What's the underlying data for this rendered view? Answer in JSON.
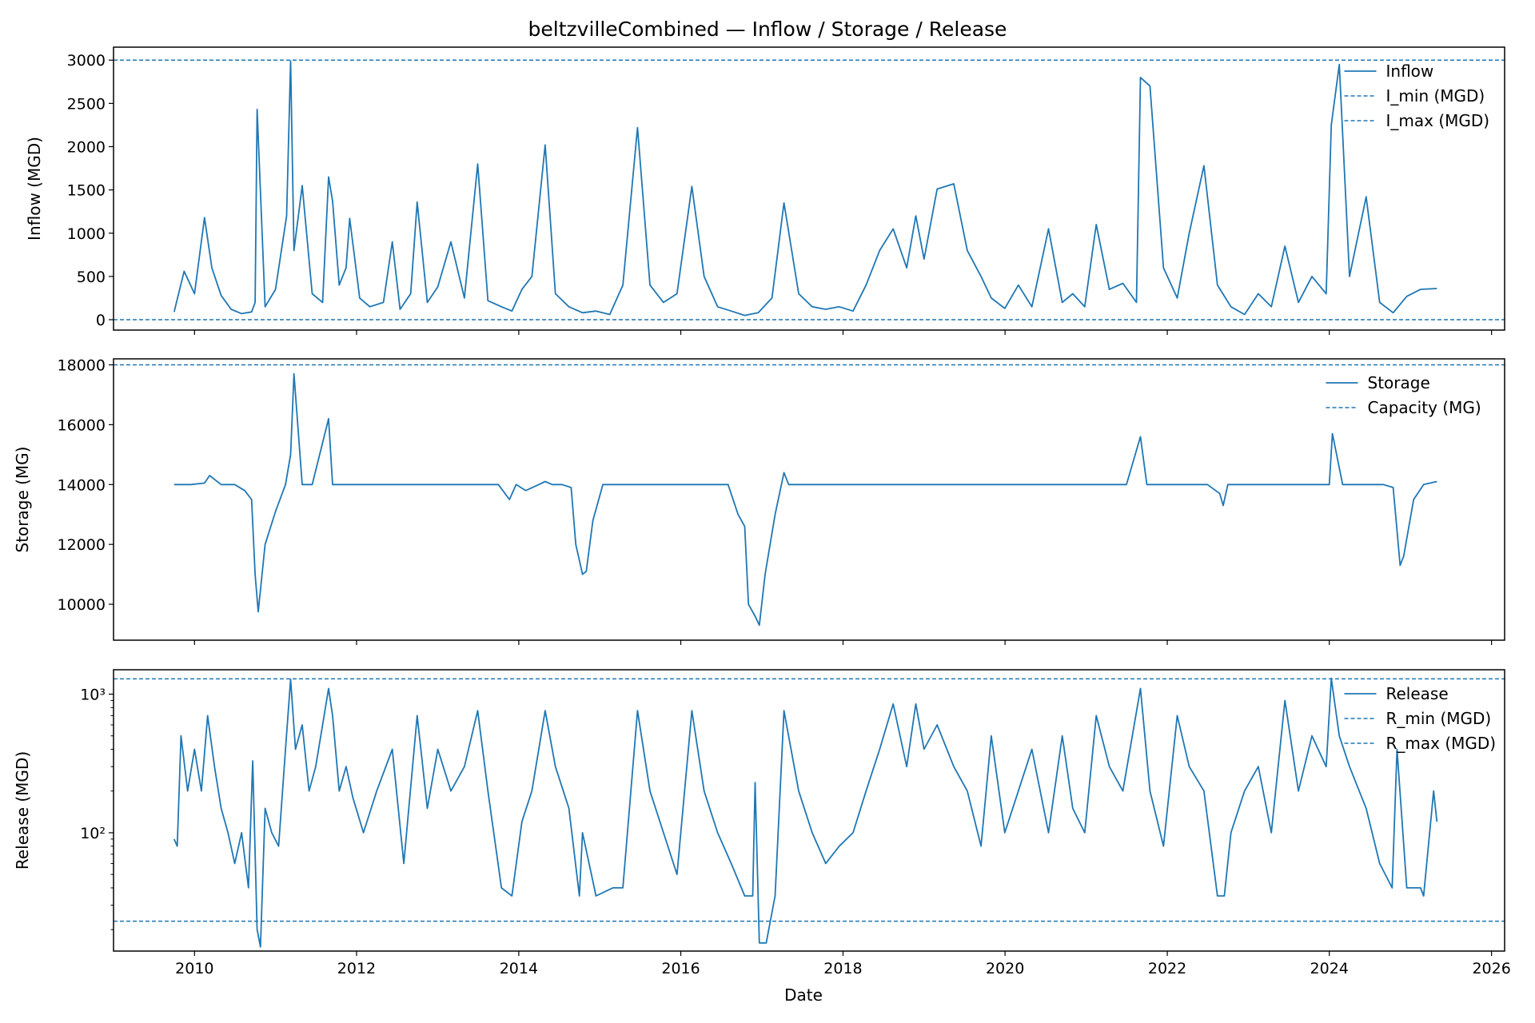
{
  "figure": {
    "title": "beltzvilleCombined — Inflow / Storage / Release",
    "xlabel": "Date",
    "line_color": "#1f77b4"
  },
  "chart_data": [
    {
      "type": "line",
      "name": "inflow",
      "ylabel": "Inflow (MGD)",
      "yscale": "linear",
      "xlim": [
        "2009-01-01",
        "2026-03-01"
      ],
      "ylim": [
        -120,
        3150
      ],
      "yticks": [
        0,
        500,
        1000,
        1500,
        2000,
        2500,
        3000
      ],
      "ytick_labels": [
        "0",
        "500",
        "1000",
        "1500",
        "2000",
        "2500",
        "3000"
      ],
      "xticks": [
        "2010",
        "2012",
        "2014",
        "2016",
        "2018",
        "2020",
        "2022",
        "2024",
        "2026"
      ],
      "show_xtick_labels": false,
      "grid": false,
      "legend_position": "top-right",
      "legend": [
        "Inflow",
        "I_min (MGD)",
        "I_max (MGD)"
      ],
      "hlines": [
        {
          "label": "I_min (MGD)",
          "value": 0
        },
        {
          "label": "I_max (MGD)",
          "value": 3000
        }
      ],
      "series": [
        {
          "name": "Inflow",
          "x": [
            "2009-10-01",
            "2009-11-15",
            "2010-01-01",
            "2010-02-15",
            "2010-03-20",
            "2010-05-01",
            "2010-06-15",
            "2010-08-01",
            "2010-09-15",
            "2010-10-01",
            "2010-10-10",
            "2010-11-15",
            "2011-01-01",
            "2011-02-20",
            "2011-03-10",
            "2011-03-25",
            "2011-05-01",
            "2011-06-15",
            "2011-08-01",
            "2011-08-28",
            "2011-09-15",
            "2011-10-15",
            "2011-11-15",
            "2011-12-01",
            "2012-01-15",
            "2012-03-01",
            "2012-05-01",
            "2012-06-10",
            "2012-07-15",
            "2012-09-01",
            "2012-09-30",
            "2012-11-15",
            "2013-01-01",
            "2013-03-01",
            "2013-05-01",
            "2013-06-30",
            "2013-08-15",
            "2013-10-15",
            "2013-12-01",
            "2014-01-15",
            "2014-03-01",
            "2014-04-30",
            "2014-06-15",
            "2014-08-15",
            "2014-10-15",
            "2014-12-15",
            "2015-02-15",
            "2015-04-15",
            "2015-06-20",
            "2015-08-15",
            "2015-10-15",
            "2015-12-15",
            "2016-02-20",
            "2016-04-15",
            "2016-06-15",
            "2016-08-15",
            "2016-10-15",
            "2016-12-15",
            "2017-02-15",
            "2017-04-10",
            "2017-06-15",
            "2017-08-15",
            "2017-10-15",
            "2017-12-15",
            "2018-02-15",
            "2018-04-15",
            "2018-06-15",
            "2018-08-15",
            "2018-10-15",
            "2018-11-25",
            "2019-01-01",
            "2019-03-01",
            "2019-05-15",
            "2019-07-15",
            "2019-09-15",
            "2019-10-31",
            "2019-12-31",
            "2020-03-01",
            "2020-05-01",
            "2020-07-15",
            "2020-09-15",
            "2020-11-01",
            "2020-12-25",
            "2021-02-15",
            "2021-04-15",
            "2021-06-15",
            "2021-08-15",
            "2021-09-02",
            "2021-10-15",
            "2021-12-15",
            "2022-02-15",
            "2022-04-10",
            "2022-06-15",
            "2022-08-15",
            "2022-10-15",
            "2022-12-15",
            "2023-02-15",
            "2023-04-15",
            "2023-06-15",
            "2023-08-15",
            "2023-10-15",
            "2023-12-18",
            "2024-01-10",
            "2024-02-15",
            "2024-04-01",
            "2024-06-15",
            "2024-08-15",
            "2024-10-15",
            "2024-12-15",
            "2025-02-15",
            "2025-04-30"
          ],
          "y": [
            90,
            560,
            300,
            1180,
            600,
            280,
            120,
            70,
            90,
            200,
            2430,
            150,
            350,
            1200,
            2990,
            800,
            1550,
            300,
            200,
            1650,
            1370,
            400,
            600,
            1170,
            250,
            150,
            200,
            900,
            120,
            300,
            1360,
            200,
            380,
            900,
            250,
            1800,
            220,
            150,
            100,
            350,
            500,
            2020,
            300,
            150,
            80,
            100,
            60,
            400,
            2220,
            400,
            200,
            300,
            1540,
            500,
            150,
            100,
            50,
            80,
            250,
            1350,
            300,
            150,
            120,
            150,
            100,
            400,
            800,
            1050,
            600,
            1200,
            700,
            1510,
            1570,
            800,
            500,
            250,
            130,
            400,
            150,
            1050,
            200,
            300,
            150,
            1100,
            350,
            420,
            200,
            2800,
            2700,
            600,
            250,
            1000,
            1780,
            400,
            150,
            60,
            300,
            150,
            850,
            200,
            500,
            300,
            2250,
            2950,
            500,
            1420,
            200,
            80,
            270,
            350,
            360
          ]
        }
      ]
    },
    {
      "type": "line",
      "name": "storage",
      "ylabel": "Storage (MG)",
      "yscale": "linear",
      "xlim": [
        "2009-01-01",
        "2026-03-01"
      ],
      "ylim": [
        8800,
        18200
      ],
      "yticks": [
        10000,
        12000,
        14000,
        16000,
        18000
      ],
      "ytick_labels": [
        "10000",
        "12000",
        "14000",
        "16000",
        "18000"
      ],
      "xticks": [
        "2010",
        "2012",
        "2014",
        "2016",
        "2018",
        "2020",
        "2022",
        "2024",
        "2026"
      ],
      "show_xtick_labels": false,
      "grid": false,
      "legend_position": "top-right",
      "legend": [
        "Storage",
        "Capacity (MG)"
      ],
      "hlines": [
        {
          "label": "Capacity (MG)",
          "value": 18000
        }
      ],
      "series": [
        {
          "name": "Storage",
          "x": [
            "2009-10-01",
            "2009-12-15",
            "2010-02-15",
            "2010-03-10",
            "2010-05-01",
            "2010-07-01",
            "2010-08-15",
            "2010-09-15",
            "2010-10-01",
            "2010-10-15",
            "2010-11-15",
            "2011-01-01",
            "2011-02-15",
            "2011-03-10",
            "2011-03-25",
            "2011-05-01",
            "2011-06-15",
            "2011-08-28",
            "2011-09-15",
            "2011-11-01",
            "2012-01-01",
            "2012-04-01",
            "2012-07-01",
            "2012-10-01",
            "2013-01-01",
            "2013-04-01",
            "2013-07-01",
            "2013-10-01",
            "2013-11-20",
            "2013-12-20",
            "2014-02-01",
            "2014-04-01",
            "2014-04-30",
            "2014-06-01",
            "2014-07-15",
            "2014-08-25",
            "2014-09-15",
            "2014-10-15",
            "2014-11-01",
            "2014-12-01",
            "2015-01-15",
            "2015-03-01",
            "2015-06-01",
            "2015-09-01",
            "2015-12-01",
            "2016-03-01",
            "2016-06-01",
            "2016-08-01",
            "2016-09-15",
            "2016-10-15",
            "2016-11-01",
            "2016-12-01",
            "2016-12-20",
            "2017-01-15",
            "2017-03-01",
            "2017-04-10",
            "2017-05-01",
            "2017-08-01",
            "2017-11-01",
            "2018-02-01",
            "2018-05-01",
            "2018-08-01",
            "2018-11-01",
            "2019-01-01",
            "2019-04-01",
            "2019-07-01",
            "2019-10-01",
            "2020-01-01",
            "2020-04-01",
            "2020-07-01",
            "2020-10-01",
            "2021-01-01",
            "2021-04-01",
            "2021-07-01",
            "2021-09-02",
            "2021-10-01",
            "2022-01-01",
            "2022-04-01",
            "2022-07-01",
            "2022-08-25",
            "2022-09-10",
            "2022-10-01",
            "2023-01-01",
            "2023-04-01",
            "2023-07-01",
            "2023-10-01",
            "2024-01-01",
            "2024-01-15",
            "2024-03-01",
            "2024-06-01",
            "2024-09-01",
            "2024-10-15",
            "2024-11-15",
            "2024-12-01",
            "2025-01-15",
            "2025-03-01",
            "2025-04-30"
          ],
          "y": [
            14000,
            14000,
            14050,
            14300,
            14000,
            14000,
            13800,
            13500,
            11000,
            9750,
            12000,
            13100,
            14000,
            15000,
            17700,
            14000,
            14000,
            16200,
            14000,
            14000,
            14000,
            14000,
            14000,
            14000,
            14000,
            14000,
            14000,
            14000,
            13500,
            14000,
            13800,
            14000,
            14100,
            14000,
            14000,
            13900,
            12000,
            11000,
            11100,
            12800,
            14000,
            14000,
            14000,
            14000,
            14000,
            14000,
            14000,
            14000,
            13000,
            12600,
            10000,
            9600,
            9300,
            11000,
            13000,
            14400,
            14000,
            14000,
            14000,
            14000,
            14000,
            14000,
            14000,
            14000,
            14000,
            14000,
            14000,
            14000,
            14000,
            14000,
            14000,
            14000,
            14000,
            14000,
            15600,
            14000,
            14000,
            14000,
            14000,
            13700,
            13300,
            14000,
            14000,
            14000,
            14000,
            14000,
            14000,
            15700,
            14000,
            14000,
            14000,
            13900,
            11300,
            11600,
            13500,
            14000,
            14100
          ]
        }
      ]
    },
    {
      "type": "line",
      "name": "release",
      "ylabel": "Release (MGD)",
      "yscale": "log",
      "xlim": [
        "2009-01-01",
        "2026-03-01"
      ],
      "ylim": [
        14,
        1500
      ],
      "yticks": [
        100,
        1000
      ],
      "ytick_labels": [
        "10²",
        "10³"
      ],
      "xticks": [
        "2010",
        "2012",
        "2014",
        "2016",
        "2018",
        "2020",
        "2022",
        "2024",
        "2026"
      ],
      "xtick_labels": [
        "2010",
        "2012",
        "2014",
        "2016",
        "2018",
        "2020",
        "2022",
        "2024",
        "2026"
      ],
      "show_xtick_labels": true,
      "grid": false,
      "legend_position": "top-right",
      "legend": [
        "Release",
        "R_min (MGD)",
        "R_max (MGD)"
      ],
      "hlines": [
        {
          "label": "R_min (MGD)",
          "value": 23
        },
        {
          "label": "R_max (MGD)",
          "value": 1290
        }
      ],
      "series": [
        {
          "name": "Release",
          "x": [
            "2009-10-01",
            "2009-10-15",
            "2009-11-01",
            "2009-12-01",
            "2010-01-01",
            "2010-02-01",
            "2010-03-01",
            "2010-04-01",
            "2010-05-01",
            "2010-06-01",
            "2010-07-01",
            "2010-08-01",
            "2010-09-01",
            "2010-09-20",
            "2010-10-10",
            "2010-10-25",
            "2010-11-15",
            "2010-12-15",
            "2011-01-15",
            "2011-02-15",
            "2011-03-10",
            "2011-04-01",
            "2011-05-01",
            "2011-06-01",
            "2011-07-01",
            "2011-08-28",
            "2011-09-15",
            "2011-10-15",
            "2011-11-15",
            "2011-12-15",
            "2012-02-01",
            "2012-04-01",
            "2012-06-10",
            "2012-08-01",
            "2012-09-30",
            "2012-11-15",
            "2013-01-01",
            "2013-03-01",
            "2013-05-01",
            "2013-06-30",
            "2013-08-15",
            "2013-10-15",
            "2013-12-01",
            "2014-01-15",
            "2014-03-01",
            "2014-04-30",
            "2014-06-15",
            "2014-08-15",
            "2014-10-01",
            "2014-10-15",
            "2014-12-15",
            "2015-03-01",
            "2015-04-15",
            "2015-06-20",
            "2015-08-15",
            "2015-10-15",
            "2015-12-15",
            "2016-02-20",
            "2016-04-15",
            "2016-06-15",
            "2016-08-15",
            "2016-10-15",
            "2016-11-20",
            "2016-12-01",
            "2016-12-20",
            "2017-01-20",
            "2017-03-01",
            "2017-04-10",
            "2017-06-15",
            "2017-08-15",
            "2017-10-15",
            "2017-12-15",
            "2018-02-15",
            "2018-04-15",
            "2018-06-15",
            "2018-08-15",
            "2018-10-15",
            "2018-11-25",
            "2019-01-01",
            "2019-03-01",
            "2019-05-15",
            "2019-07-15",
            "2019-09-15",
            "2019-10-31",
            "2019-12-31",
            "2020-03-01",
            "2020-05-01",
            "2020-07-15",
            "2020-09-15",
            "2020-11-01",
            "2020-12-25",
            "2021-02-15",
            "2021-04-15",
            "2021-06-15",
            "2021-09-02",
            "2021-10-15",
            "2021-12-15",
            "2022-02-15",
            "2022-04-10",
            "2022-06-15",
            "2022-08-15",
            "2022-09-15",
            "2022-10-15",
            "2022-12-15",
            "2023-02-15",
            "2023-04-15",
            "2023-06-15",
            "2023-08-15",
            "2023-10-15",
            "2023-12-18",
            "2024-01-10",
            "2024-02-15",
            "2024-04-01",
            "2024-06-15",
            "2024-08-15",
            "2024-10-10",
            "2024-11-01",
            "2024-12-15",
            "2025-02-15",
            "2025-03-01",
            "2025-04-15",
            "2025-04-30"
          ],
          "y": [
            90,
            80,
            500,
            200,
            400,
            200,
            700,
            300,
            150,
            100,
            60,
            100,
            40,
            330,
            20,
            15,
            150,
            100,
            80,
            400,
            1280,
            400,
            600,
            200,
            300,
            1100,
            700,
            200,
            300,
            180,
            100,
            200,
            400,
            60,
            700,
            150,
            400,
            200,
            300,
            760,
            200,
            40,
            35,
            120,
            200,
            760,
            300,
            150,
            35,
            100,
            35,
            40,
            40,
            760,
            200,
            100,
            50,
            760,
            200,
            100,
            60,
            35,
            35,
            230,
            16,
            16,
            35,
            760,
            200,
            100,
            60,
            80,
            100,
            200,
            400,
            850,
            300,
            850,
            400,
            600,
            300,
            200,
            80,
            500,
            100,
            200,
            400,
            100,
            500,
            150,
            100,
            700,
            300,
            200,
            1100,
            200,
            80,
            700,
            300,
            200,
            35,
            35,
            100,
            200,
            300,
            100,
            900,
            200,
            500,
            300,
            1300,
            500,
            300,
            150,
            60,
            40,
            400,
            40,
            40,
            35,
            200,
            120
          ]
        }
      ]
    }
  ]
}
